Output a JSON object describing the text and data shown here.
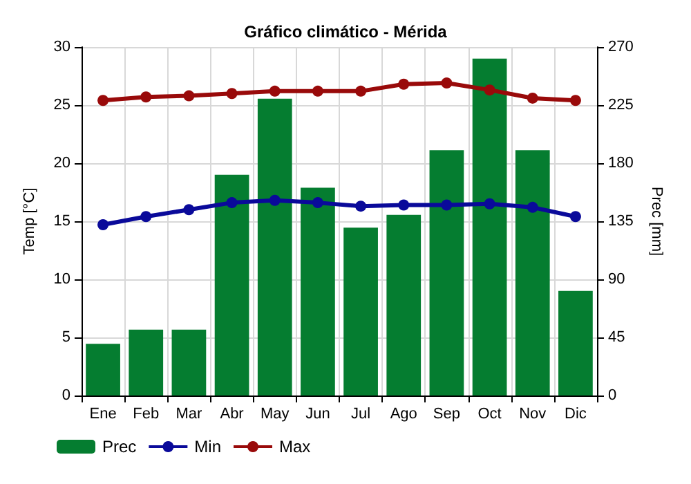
{
  "chart_data": {
    "type": "bar",
    "title": "Gráfico climático - Mérida",
    "ylabel": "Temp [°C]",
    "y2label": "Prec [mm]",
    "categories": [
      "Ene",
      "Feb",
      "Mar",
      "Abr",
      "May",
      "Jun",
      "Jul",
      "Ago",
      "Sep",
      "Oct",
      "Nov",
      "Dic"
    ],
    "series": [
      {
        "name": "Prec",
        "axis": "y2",
        "color": "#057d30",
        "values": [
          40,
          51,
          51,
          171,
          230,
          161,
          130,
          140,
          190,
          261,
          190,
          81
        ]
      },
      {
        "name": "Min",
        "type": "line",
        "color": "#0a0a9a",
        "values": [
          14.7,
          15.4,
          16.0,
          16.6,
          16.8,
          16.6,
          16.3,
          16.4,
          16.4,
          16.5,
          16.2,
          15.4
        ]
      },
      {
        "name": "Max",
        "type": "line",
        "color": "#990a0a",
        "values": [
          25.4,
          25.7,
          25.8,
          26.0,
          26.2,
          26.2,
          26.2,
          26.8,
          26.9,
          26.3,
          25.6,
          25.4
        ]
      }
    ],
    "ylim": [
      0,
      30
    ],
    "yticks": [
      0,
      5,
      10,
      15,
      20,
      25,
      30
    ],
    "y2lim": [
      0,
      270
    ],
    "y2ticks": [
      0,
      45,
      90,
      135,
      180,
      225,
      270
    ],
    "grid": true,
    "legend": "bottom left",
    "marker": "circle",
    "line_style": "solid"
  }
}
